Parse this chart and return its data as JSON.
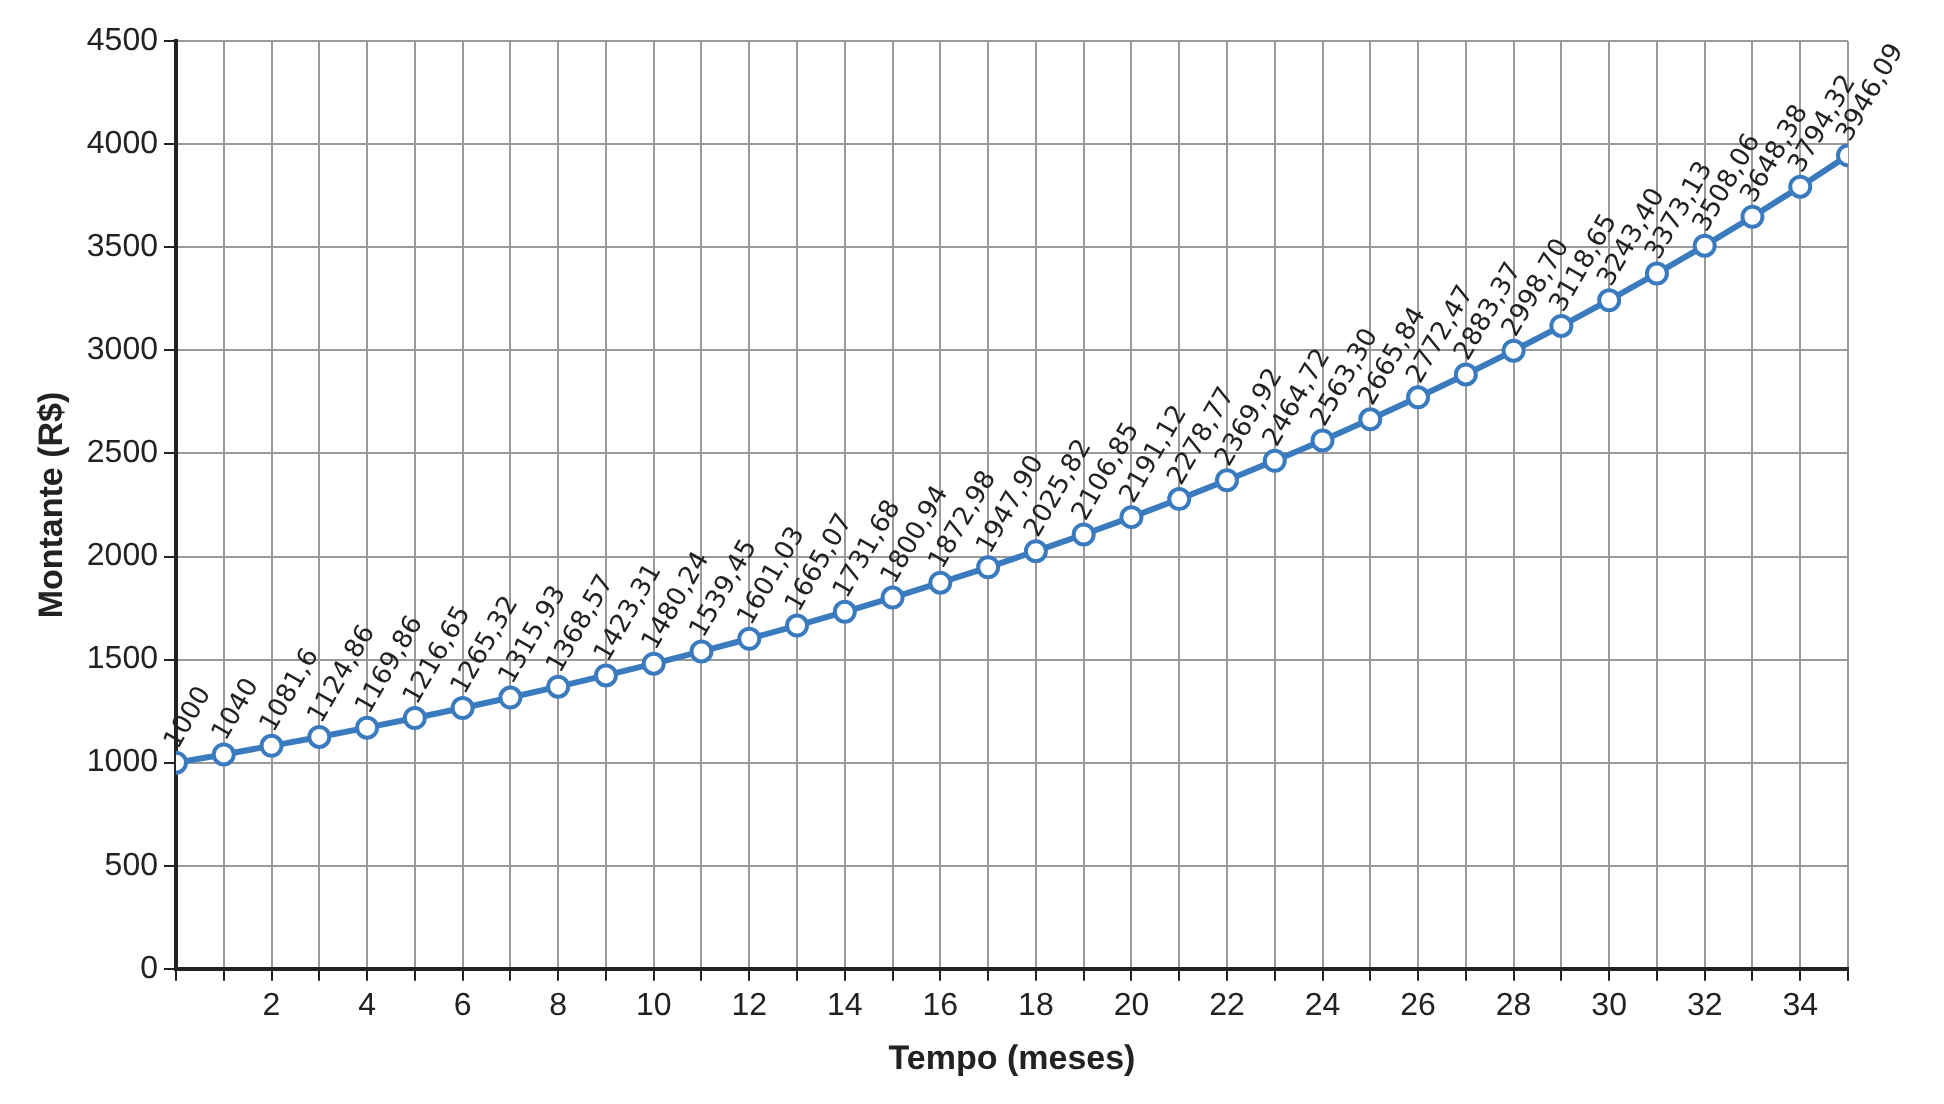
{
  "chart_data": {
    "type": "line",
    "xlabel": "Tempo (meses)",
    "ylabel": "Montante (R$)",
    "x": [
      0,
      1,
      2,
      3,
      4,
      5,
      6,
      7,
      8,
      9,
      10,
      11,
      12,
      13,
      14,
      15,
      16,
      17,
      18,
      19,
      20,
      21,
      22,
      23,
      24,
      25,
      26,
      27,
      28,
      29,
      30,
      31,
      32,
      33,
      34,
      35
    ],
    "series": [
      {
        "color": "#3a7bbf",
        "values": [
          1000,
          1040,
          1081.6,
          1124.86,
          1169.86,
          1216.65,
          1265.32,
          1315.93,
          1368.57,
          1423.31,
          1480.24,
          1539.45,
          1601.03,
          1665.07,
          1731.68,
          1800.94,
          1872.98,
          1947.9,
          2025.82,
          2106.85,
          2191.12,
          2278.77,
          2369.92,
          2464.72,
          2563.3,
          2665.84,
          2772.47,
          2883.37,
          2998.7,
          3118.65,
          3243.4,
          3373.13,
          3508.06,
          3648.38,
          3794.32,
          3946.09
        ],
        "value_labels": [
          "1000",
          "1040",
          "1081,6",
          "1124,86",
          "1169,86",
          "1216,65",
          "1265,32",
          "1315,93",
          "1368,57",
          "1423,31",
          "1480,24",
          "1539,45",
          "1601,03",
          "1665,07",
          "1731,68",
          "1800,94",
          "1872,98",
          "1947,90",
          "2025,82",
          "2106,85",
          "2191,12",
          "2278,77",
          "2369,92",
          "2464,72",
          "2563,30",
          "2665,84",
          "2772,47",
          "2883,37",
          "2998,70",
          "3118,65",
          "3243,40",
          "3373,13",
          "3508,06",
          "3648,38",
          "3794,32",
          "3946,09"
        ]
      }
    ],
    "xlim": [
      0,
      35
    ],
    "xticks": [
      {
        "value": 0,
        "label": null
      },
      {
        "value": 1,
        "label": null
      },
      2,
      {
        "value": 3,
        "label": null
      },
      4,
      {
        "value": 5,
        "label": null
      },
      6,
      {
        "value": 7,
        "label": null
      },
      8,
      {
        "value": 9,
        "label": null
      },
      10,
      {
        "value": 11,
        "label": null
      },
      12,
      {
        "value": 13,
        "label": null
      },
      14,
      {
        "value": 15,
        "label": null
      },
      16,
      {
        "value": 17,
        "label": null
      },
      18,
      {
        "value": 19,
        "label": null
      },
      20,
      {
        "value": 21,
        "label": null
      },
      22,
      {
        "value": 23,
        "label": null
      },
      24,
      {
        "value": 25,
        "label": null
      },
      26,
      {
        "value": 27,
        "label": null
      },
      28,
      {
        "value": 29,
        "label": null
      },
      30,
      {
        "value": 31,
        "label": null
      },
      32,
      {
        "value": 33,
        "label": null
      },
      34,
      {
        "value": 35,
        "label": null
      }
    ],
    "ylim": [
      0,
      4500
    ],
    "yticks": [
      0,
      500,
      1000,
      1500,
      2000,
      2500,
      3000,
      3500,
      4000,
      4500
    ],
    "grid": true,
    "legend": false,
    "marker": "circle",
    "line_style": "solid"
  }
}
